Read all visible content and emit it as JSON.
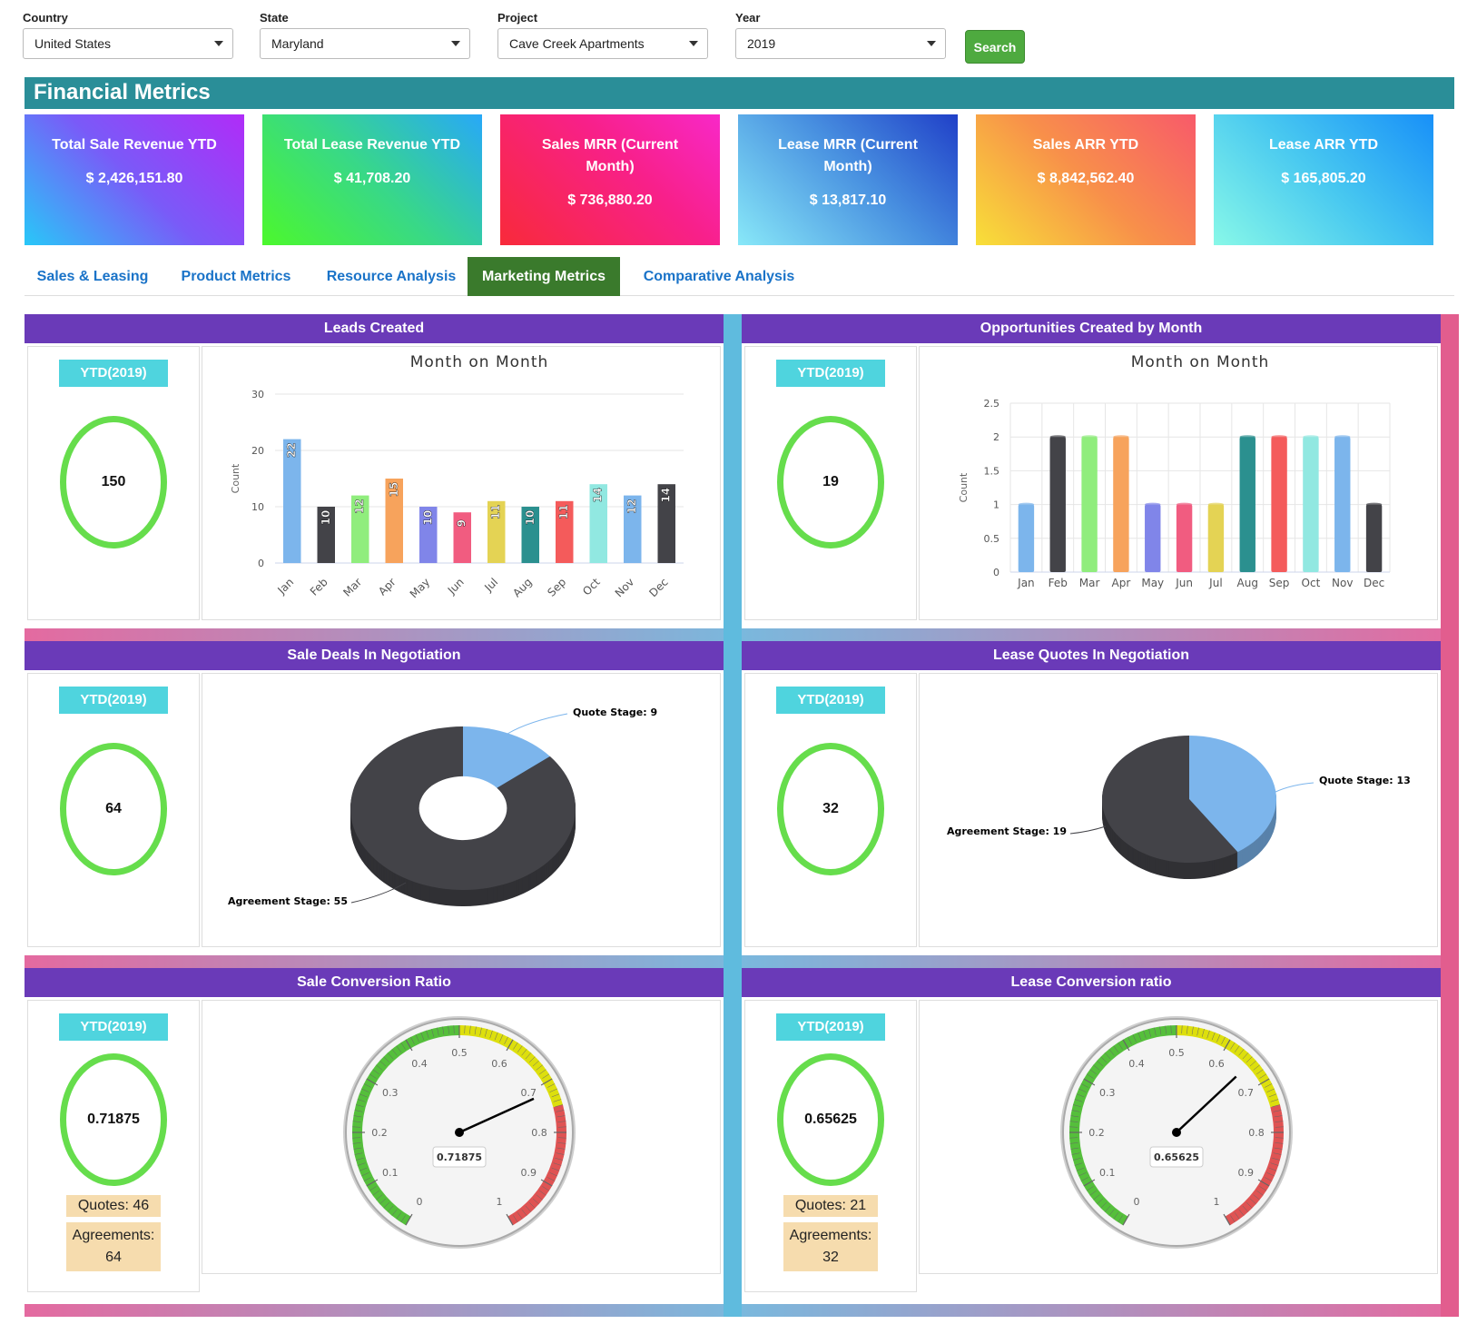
{
  "filters": {
    "country": {
      "label": "Country",
      "value": "United States"
    },
    "state": {
      "label": "State",
      "value": "Maryland"
    },
    "project": {
      "label": "Project",
      "value": "Cave Creek Apartments"
    },
    "year": {
      "label": "Year",
      "value": "2019"
    },
    "search_label": "Search"
  },
  "financial": {
    "title": "Financial Metrics",
    "kpis": [
      {
        "title": "Total Sale Revenue YTD",
        "value": "$ 2,426,151.80"
      },
      {
        "title": "Total Lease Revenue YTD",
        "value": "$ 41,708.20"
      },
      {
        "title": "Sales MRR (Current Month)",
        "value": "$ 736,880.20"
      },
      {
        "title": "Lease MRR (Current Month)",
        "value": "$ 13,817.10"
      },
      {
        "title": "Sales ARR YTD",
        "value": "$ 8,842,562.40"
      },
      {
        "title": "Lease ARR YTD",
        "value": "$ 165,805.20"
      }
    ]
  },
  "tabs": [
    {
      "label": "Sales & Leasing"
    },
    {
      "label": "Product Metrics"
    },
    {
      "label": "Resource Analysis"
    },
    {
      "label": "Marketing Metrics",
      "active": true
    },
    {
      "label": "Comparative Analysis"
    }
  ],
  "panels": {
    "leads": {
      "title": "Leads Created",
      "ytd": "YTD(2019)",
      "total": "150"
    },
    "opps": {
      "title": "Opportunities Created by Month",
      "ytd": "YTD(2019)",
      "total": "19"
    },
    "sale_deals": {
      "title": "Sale Deals In Negotiation",
      "ytd": "YTD(2019)",
      "total": "64"
    },
    "lease_quotes": {
      "title": "Lease Quotes In Negotiation",
      "ytd": "YTD(2019)",
      "total": "32"
    },
    "sale_conv": {
      "title": "Sale Conversion Ratio",
      "ytd": "YTD(2019)",
      "total": "0.71875",
      "quotes": "Quotes: 46",
      "agreements_label": "Agreements:",
      "agreements": "64"
    },
    "lease_conv": {
      "title": "Lease Conversion ratio",
      "ytd": "YTD(2019)",
      "total": "0.65625",
      "quotes": "Quotes: 21",
      "agreements_label": "Agreements:",
      "agreements": "32"
    }
  },
  "colors": {
    "bars": [
      "#7cb5ec",
      "#434348",
      "#90ed7d",
      "#f7a35c",
      "#8085e9",
      "#f15c80",
      "#e4d354",
      "#2b908f",
      "#f45b5b",
      "#91e8e1",
      "#7cb5ec",
      "#434348"
    ]
  },
  "chart_data": [
    {
      "type": "bar",
      "title": "Month on Month",
      "ylabel": "Count",
      "categories": [
        "Jan",
        "Feb",
        "Mar",
        "Apr",
        "May",
        "Jun",
        "Jul",
        "Aug",
        "Sep",
        "Oct",
        "Nov",
        "Dec"
      ],
      "values": [
        22,
        10,
        12,
        15,
        10,
        9,
        11,
        10,
        11,
        14,
        12,
        14
      ],
      "yticks": [
        "0",
        "10",
        "20",
        "30"
      ],
      "ylim": [
        0,
        30
      ],
      "data_labels": true
    },
    {
      "type": "bar",
      "title": "Month on Month",
      "ylabel": "Count",
      "categories": [
        "Jan",
        "Feb",
        "Mar",
        "Apr",
        "May",
        "Jun",
        "Jul",
        "Aug",
        "Sep",
        "Oct",
        "Nov",
        "Dec"
      ],
      "values": [
        1,
        2,
        2,
        2,
        1,
        1,
        1,
        2,
        2,
        2,
        2,
        1
      ],
      "yticks": [
        "0",
        "0.5",
        "1",
        "1.5",
        "2",
        "2.5"
      ],
      "ylim": [
        0,
        2.5
      ],
      "grid": true
    },
    {
      "type": "pie",
      "style": "donut",
      "slices": [
        {
          "label": "Quote Stage: 9",
          "value": 9,
          "color": "#7cb5ec"
        },
        {
          "label": "Agreement Stage: 55",
          "value": 55,
          "color": "#434348"
        }
      ]
    },
    {
      "type": "pie",
      "slices": [
        {
          "label": "Quote Stage: 13",
          "value": 13,
          "color": "#7cb5ec"
        },
        {
          "label": "Agreement Stage: 19",
          "value": 19,
          "color": "#434348"
        }
      ]
    },
    {
      "type": "gauge",
      "value": 0.71875,
      "value_label": "0.71875",
      "range": [
        0,
        1
      ],
      "ticks": [
        "0",
        "0.1",
        "0.2",
        "0.3",
        "0.4",
        "0.5",
        "0.6",
        "0.7",
        "0.8",
        "0.9",
        "1"
      ]
    },
    {
      "type": "gauge",
      "value": 0.65625,
      "value_label": "0.65625",
      "range": [
        0,
        1
      ],
      "ticks": [
        "0",
        "0.1",
        "0.2",
        "0.3",
        "0.4",
        "0.5",
        "0.6",
        "0.7",
        "0.8",
        "0.9",
        "1"
      ]
    }
  ]
}
